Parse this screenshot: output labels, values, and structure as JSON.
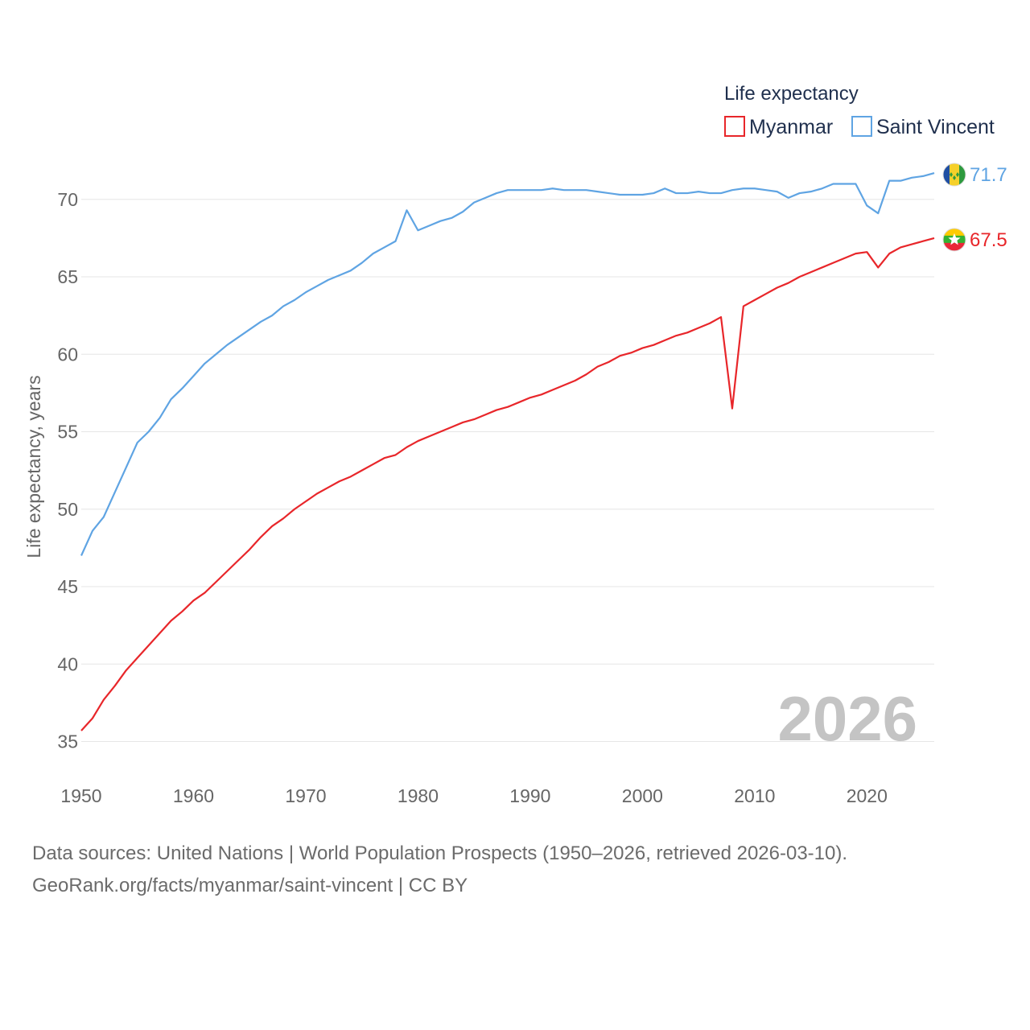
{
  "chart_data": {
    "type": "line",
    "x_start": 1950,
    "x_end": 2026,
    "xlim": [
      1950,
      2026
    ],
    "ylim": [
      33,
      73
    ],
    "x_ticks": [
      "1950",
      "1960",
      "1970",
      "1980",
      "1990",
      "2000",
      "2010",
      "2020"
    ],
    "y_ticks": [
      "35",
      "40",
      "45",
      "50",
      "55",
      "60",
      "65",
      "70"
    ],
    "ylabel": "Life expectancy, years",
    "legend_title": "Life expectancy",
    "year_label": "2026",
    "series": [
      {
        "name": "Myanmar",
        "color": "#e8262a",
        "end_label": "67.5",
        "flag": "myanmar-flag",
        "values": [
          35.7,
          36.5,
          37.7,
          38.6,
          39.6,
          40.4,
          41.2,
          42.0,
          42.8,
          43.4,
          44.1,
          44.6,
          45.3,
          46.0,
          46.7,
          47.4,
          48.2,
          48.9,
          49.4,
          50.0,
          50.5,
          51.0,
          51.4,
          51.8,
          52.1,
          52.5,
          52.9,
          53.3,
          53.5,
          54.0,
          54.4,
          54.7,
          55.0,
          55.3,
          55.6,
          55.8,
          56.1,
          56.4,
          56.6,
          56.9,
          57.2,
          57.4,
          57.7,
          58.0,
          58.3,
          58.7,
          59.2,
          59.5,
          59.9,
          60.1,
          60.4,
          60.6,
          60.9,
          61.2,
          61.4,
          61.7,
          62.0,
          62.4,
          56.5,
          63.1,
          63.5,
          63.9,
          64.3,
          64.6,
          65.0,
          65.3,
          65.6,
          65.9,
          66.2,
          66.5,
          66.6,
          65.6,
          66.5,
          66.9,
          67.1,
          67.3,
          67.5
        ]
      },
      {
        "name": "Saint Vincent",
        "color": "#5fa4e3",
        "end_label": "71.7",
        "flag": "saint-vincent-flag",
        "values": [
          47.0,
          48.6,
          49.5,
          51.1,
          52.7,
          54.3,
          55.0,
          55.9,
          57.1,
          57.8,
          58.6,
          59.4,
          60.0,
          60.6,
          61.1,
          61.6,
          62.1,
          62.5,
          63.1,
          63.5,
          64.0,
          64.4,
          64.8,
          65.1,
          65.4,
          65.9,
          66.5,
          66.9,
          67.3,
          69.3,
          68.0,
          68.3,
          68.6,
          68.8,
          69.2,
          69.8,
          70.1,
          70.4,
          70.6,
          70.6,
          70.6,
          70.6,
          70.7,
          70.6,
          70.6,
          70.6,
          70.5,
          70.4,
          70.3,
          70.3,
          70.3,
          70.4,
          70.7,
          70.4,
          70.4,
          70.5,
          70.4,
          70.4,
          70.6,
          70.7,
          70.7,
          70.6,
          70.5,
          70.1,
          70.4,
          70.5,
          70.7,
          71.0,
          71.0,
          71.0,
          69.6,
          69.1,
          71.2,
          71.2,
          71.4,
          71.5,
          71.7
        ]
      }
    ]
  },
  "source_line_1": "Data sources: United Nations | World Population Prospects (1950–2026, retrieved 2026-03-10).",
  "source_line_2": "GeoRank.org/facts/myanmar/saint-vincent | CC BY"
}
